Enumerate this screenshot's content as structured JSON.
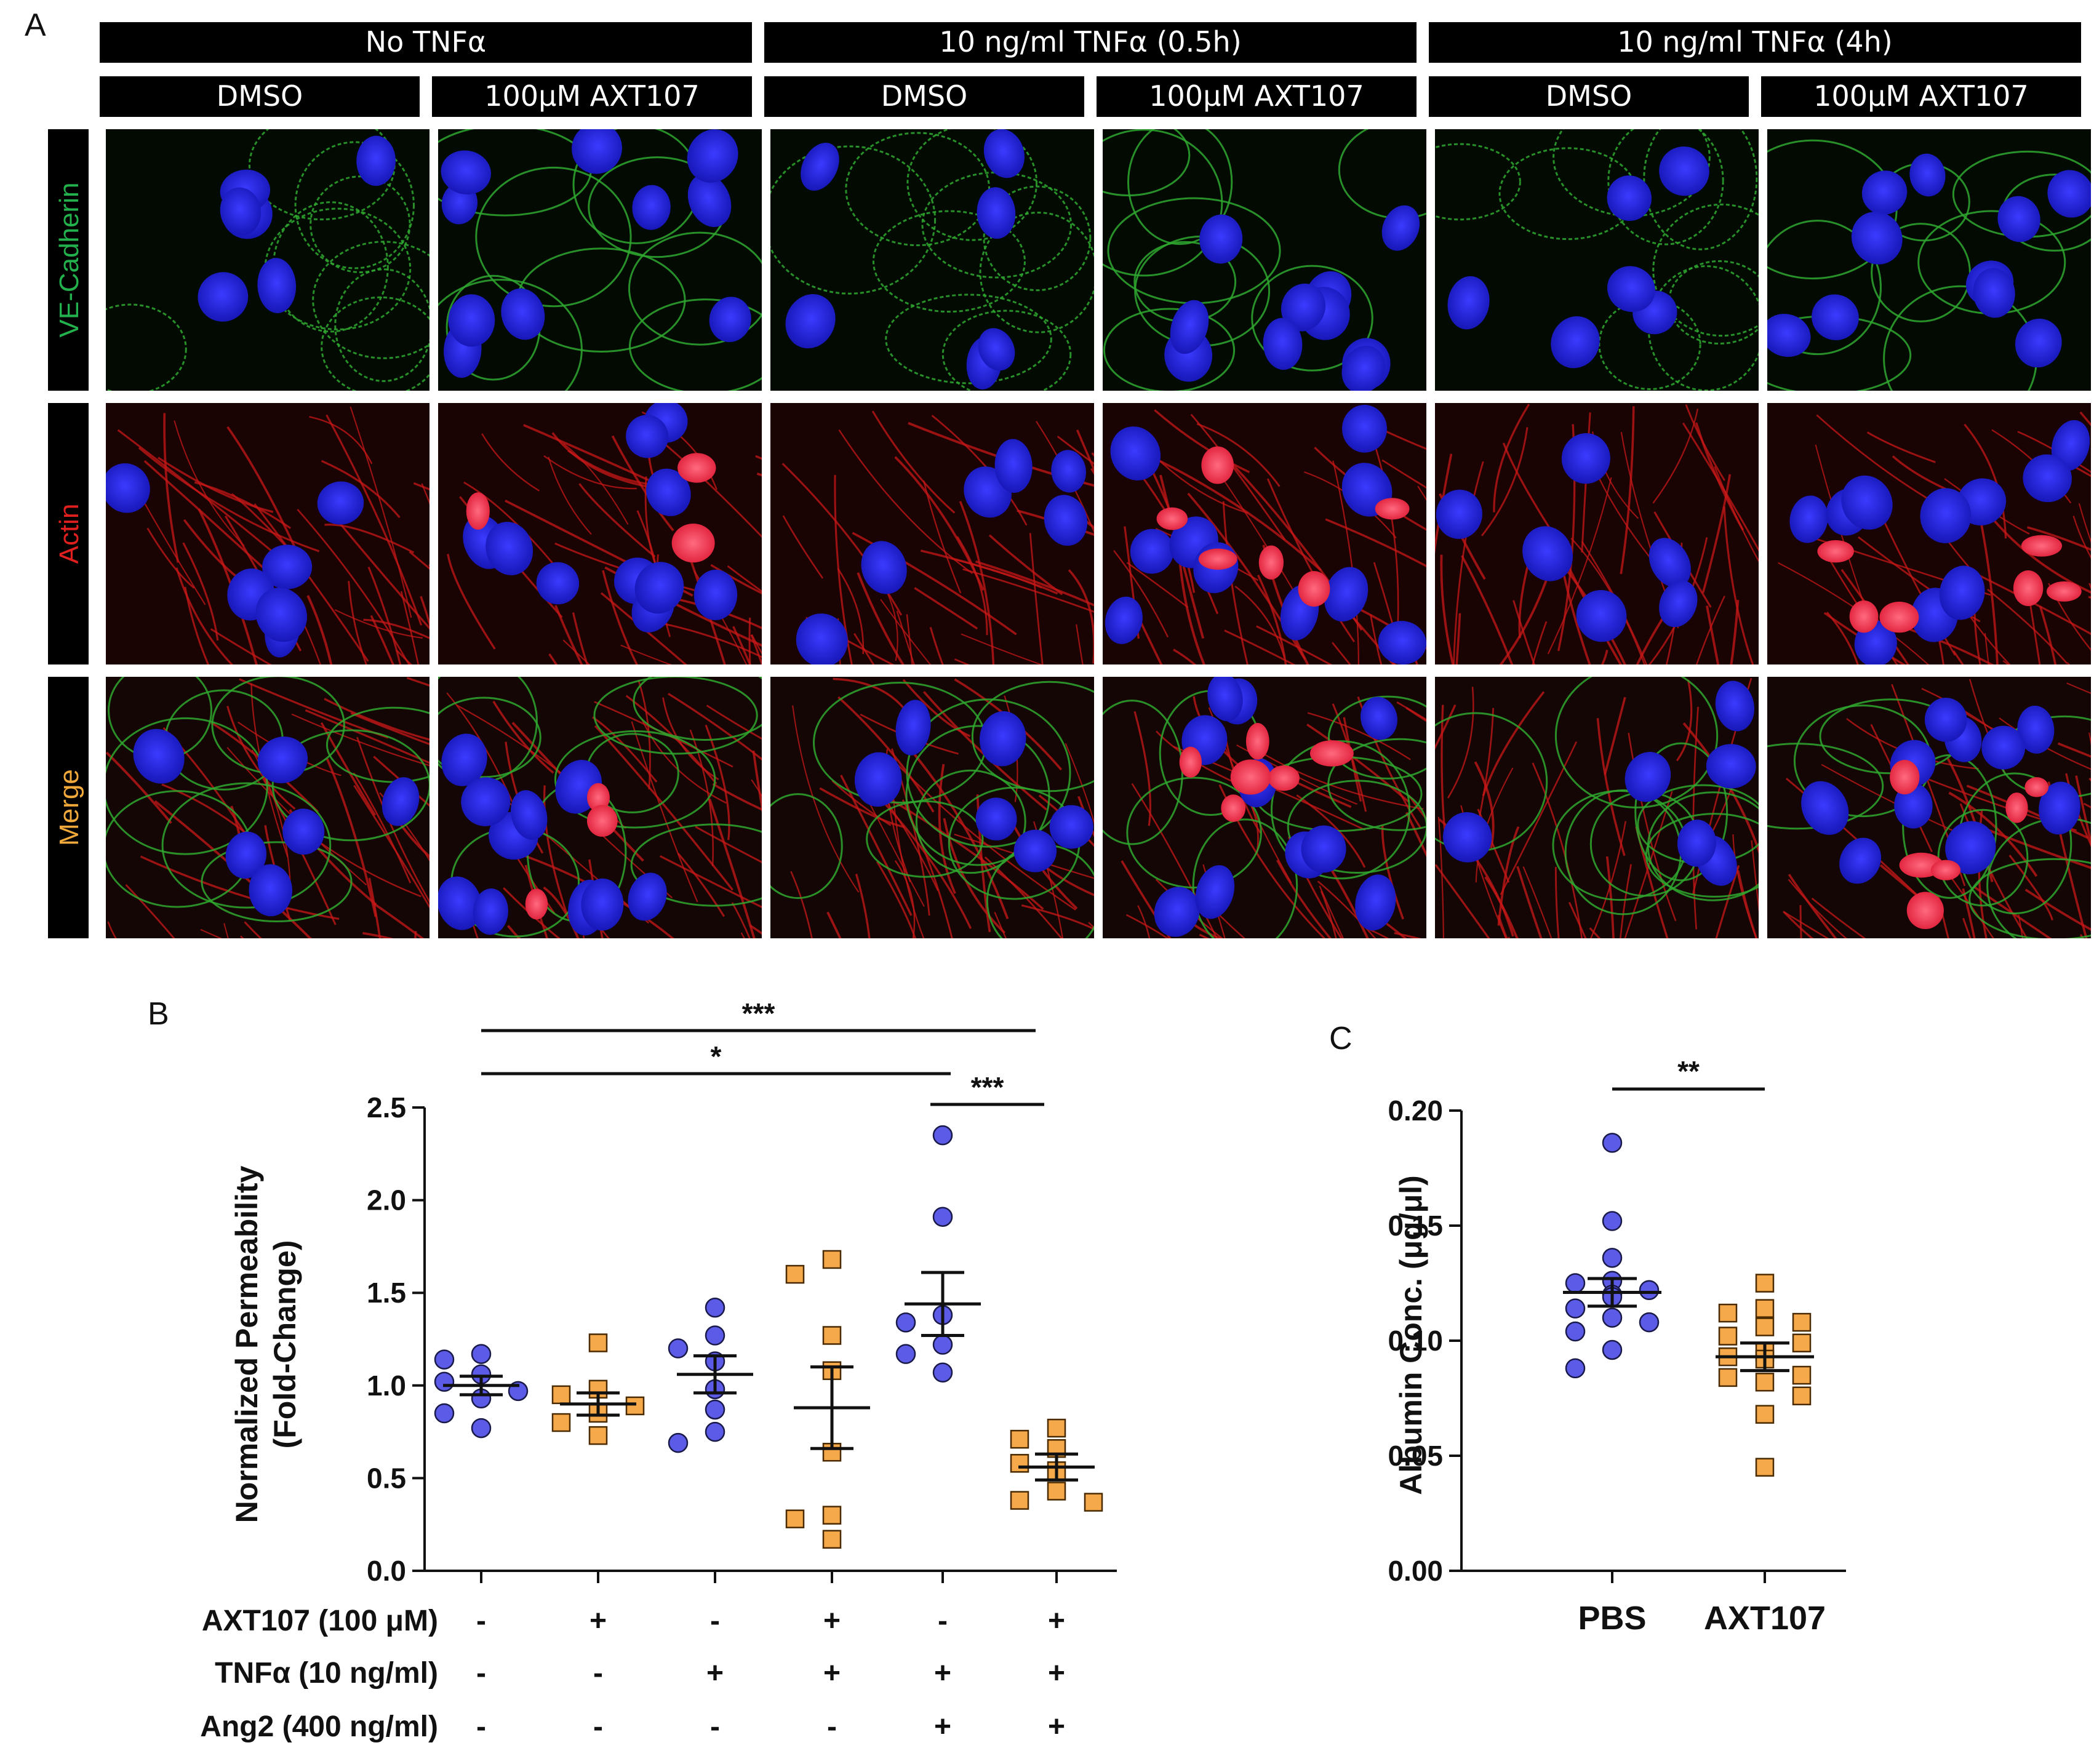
{
  "panel_a": {
    "letter": "A",
    "conditions": [
      {
        "label": "No TNFα"
      },
      {
        "label": "10 ng/ml TNFα (0.5h)"
      },
      {
        "label": "10 ng/ml TNFα (4h)"
      }
    ],
    "treatments": [
      "DMSO",
      "100μM AXT107",
      "DMSO",
      "100μM AXT107",
      "DMSO",
      "100μM AXT107"
    ],
    "rows": [
      {
        "label": "VE-Cadherin",
        "color": "#22b14c"
      },
      {
        "label": "Actin",
        "color": "#e0201e"
      },
      {
        "label": "Merge",
        "color": "#f2a93b"
      }
    ]
  },
  "chart_data": [
    {
      "panel": "B",
      "type": "scatter",
      "ylabel_line1": "Normalized Permeability",
      "ylabel_line2": "(Fold-Change)",
      "ylim": [
        0,
        2.5
      ],
      "yticks": [
        "0.0",
        "0.5",
        "1.0",
        "1.5",
        "2.0",
        "2.5"
      ],
      "ytick_values": [
        0,
        0.5,
        1.0,
        1.5,
        2.0,
        2.5
      ],
      "groups": [
        {
          "marker": "circle",
          "mean": 1.0,
          "sem": 0.05,
          "points": [
            1.17,
            1.14,
            1.06,
            1.02,
            0.97,
            0.93,
            0.85,
            0.77
          ]
        },
        {
          "marker": "square",
          "mean": 0.9,
          "sem": 0.06,
          "points": [
            1.23,
            0.98,
            0.95,
            0.89,
            0.85,
            0.8,
            0.73
          ]
        },
        {
          "marker": "circle",
          "mean": 1.06,
          "sem": 0.1,
          "points": [
            1.42,
            1.27,
            1.2,
            1.13,
            0.98,
            0.87,
            0.75,
            0.69
          ]
        },
        {
          "marker": "square",
          "mean": 0.88,
          "sem": 0.22,
          "points": [
            1.68,
            1.6,
            1.27,
            1.08,
            0.64,
            0.3,
            0.28,
            0.17
          ]
        },
        {
          "marker": "circle",
          "mean": 1.44,
          "sem": 0.17,
          "points": [
            2.35,
            1.91,
            1.38,
            1.34,
            1.22,
            1.17,
            1.07
          ]
        },
        {
          "marker": "square",
          "mean": 0.56,
          "sem": 0.07,
          "points": [
            0.77,
            0.71,
            0.66,
            0.58,
            0.54,
            0.43,
            0.38,
            0.37
          ]
        }
      ],
      "row_labels": [
        "AXT107 (100 μM)",
        "TNFα (10 ng/ml)",
        "Ang2 (400 ng/ml)"
      ],
      "condition_table": [
        [
          "-",
          "+",
          "-",
          "+",
          "-",
          "+"
        ],
        [
          "-",
          "-",
          "+",
          "+",
          "+",
          "+"
        ],
        [
          "-",
          "-",
          "-",
          "-",
          "+",
          "+"
        ]
      ],
      "significance": [
        {
          "from": 0,
          "to": 5,
          "label": "***"
        },
        {
          "from": 0,
          "to": 4,
          "label": "*"
        },
        {
          "from": 4,
          "to": 5,
          "label": "***"
        }
      ],
      "colors": {
        "circle": "#5b5be8",
        "square": "#f5a94a"
      }
    },
    {
      "panel": "C",
      "type": "scatter",
      "ylabel": "Albumin Conc. (μg/μl)",
      "ylim": [
        0,
        0.2
      ],
      "yticks": [
        "0.00",
        "0.05",
        "0.10",
        "0.15",
        "0.20"
      ],
      "ytick_values": [
        0,
        0.05,
        0.1,
        0.15,
        0.2
      ],
      "categories": [
        "PBS",
        "AXT107"
      ],
      "groups": [
        {
          "marker": "circle",
          "mean": 0.121,
          "sem": 0.006,
          "points": [
            0.186,
            0.152,
            0.136,
            0.126,
            0.125,
            0.122,
            0.12,
            0.119,
            0.114,
            0.11,
            0.108,
            0.104,
            0.096,
            0.088
          ]
        },
        {
          "marker": "square",
          "mean": 0.093,
          "sem": 0.006,
          "points": [
            0.125,
            0.114,
            0.112,
            0.108,
            0.106,
            0.102,
            0.099,
            0.095,
            0.093,
            0.092,
            0.085,
            0.084,
            0.082,
            0.076,
            0.068,
            0.045
          ]
        }
      ],
      "significance": [
        {
          "from": 0,
          "to": 1,
          "label": "**"
        }
      ],
      "colors": {
        "circle": "#5b5be8",
        "square": "#f5a94a"
      }
    }
  ],
  "panel_letters": {
    "b": "B",
    "c": "C"
  }
}
